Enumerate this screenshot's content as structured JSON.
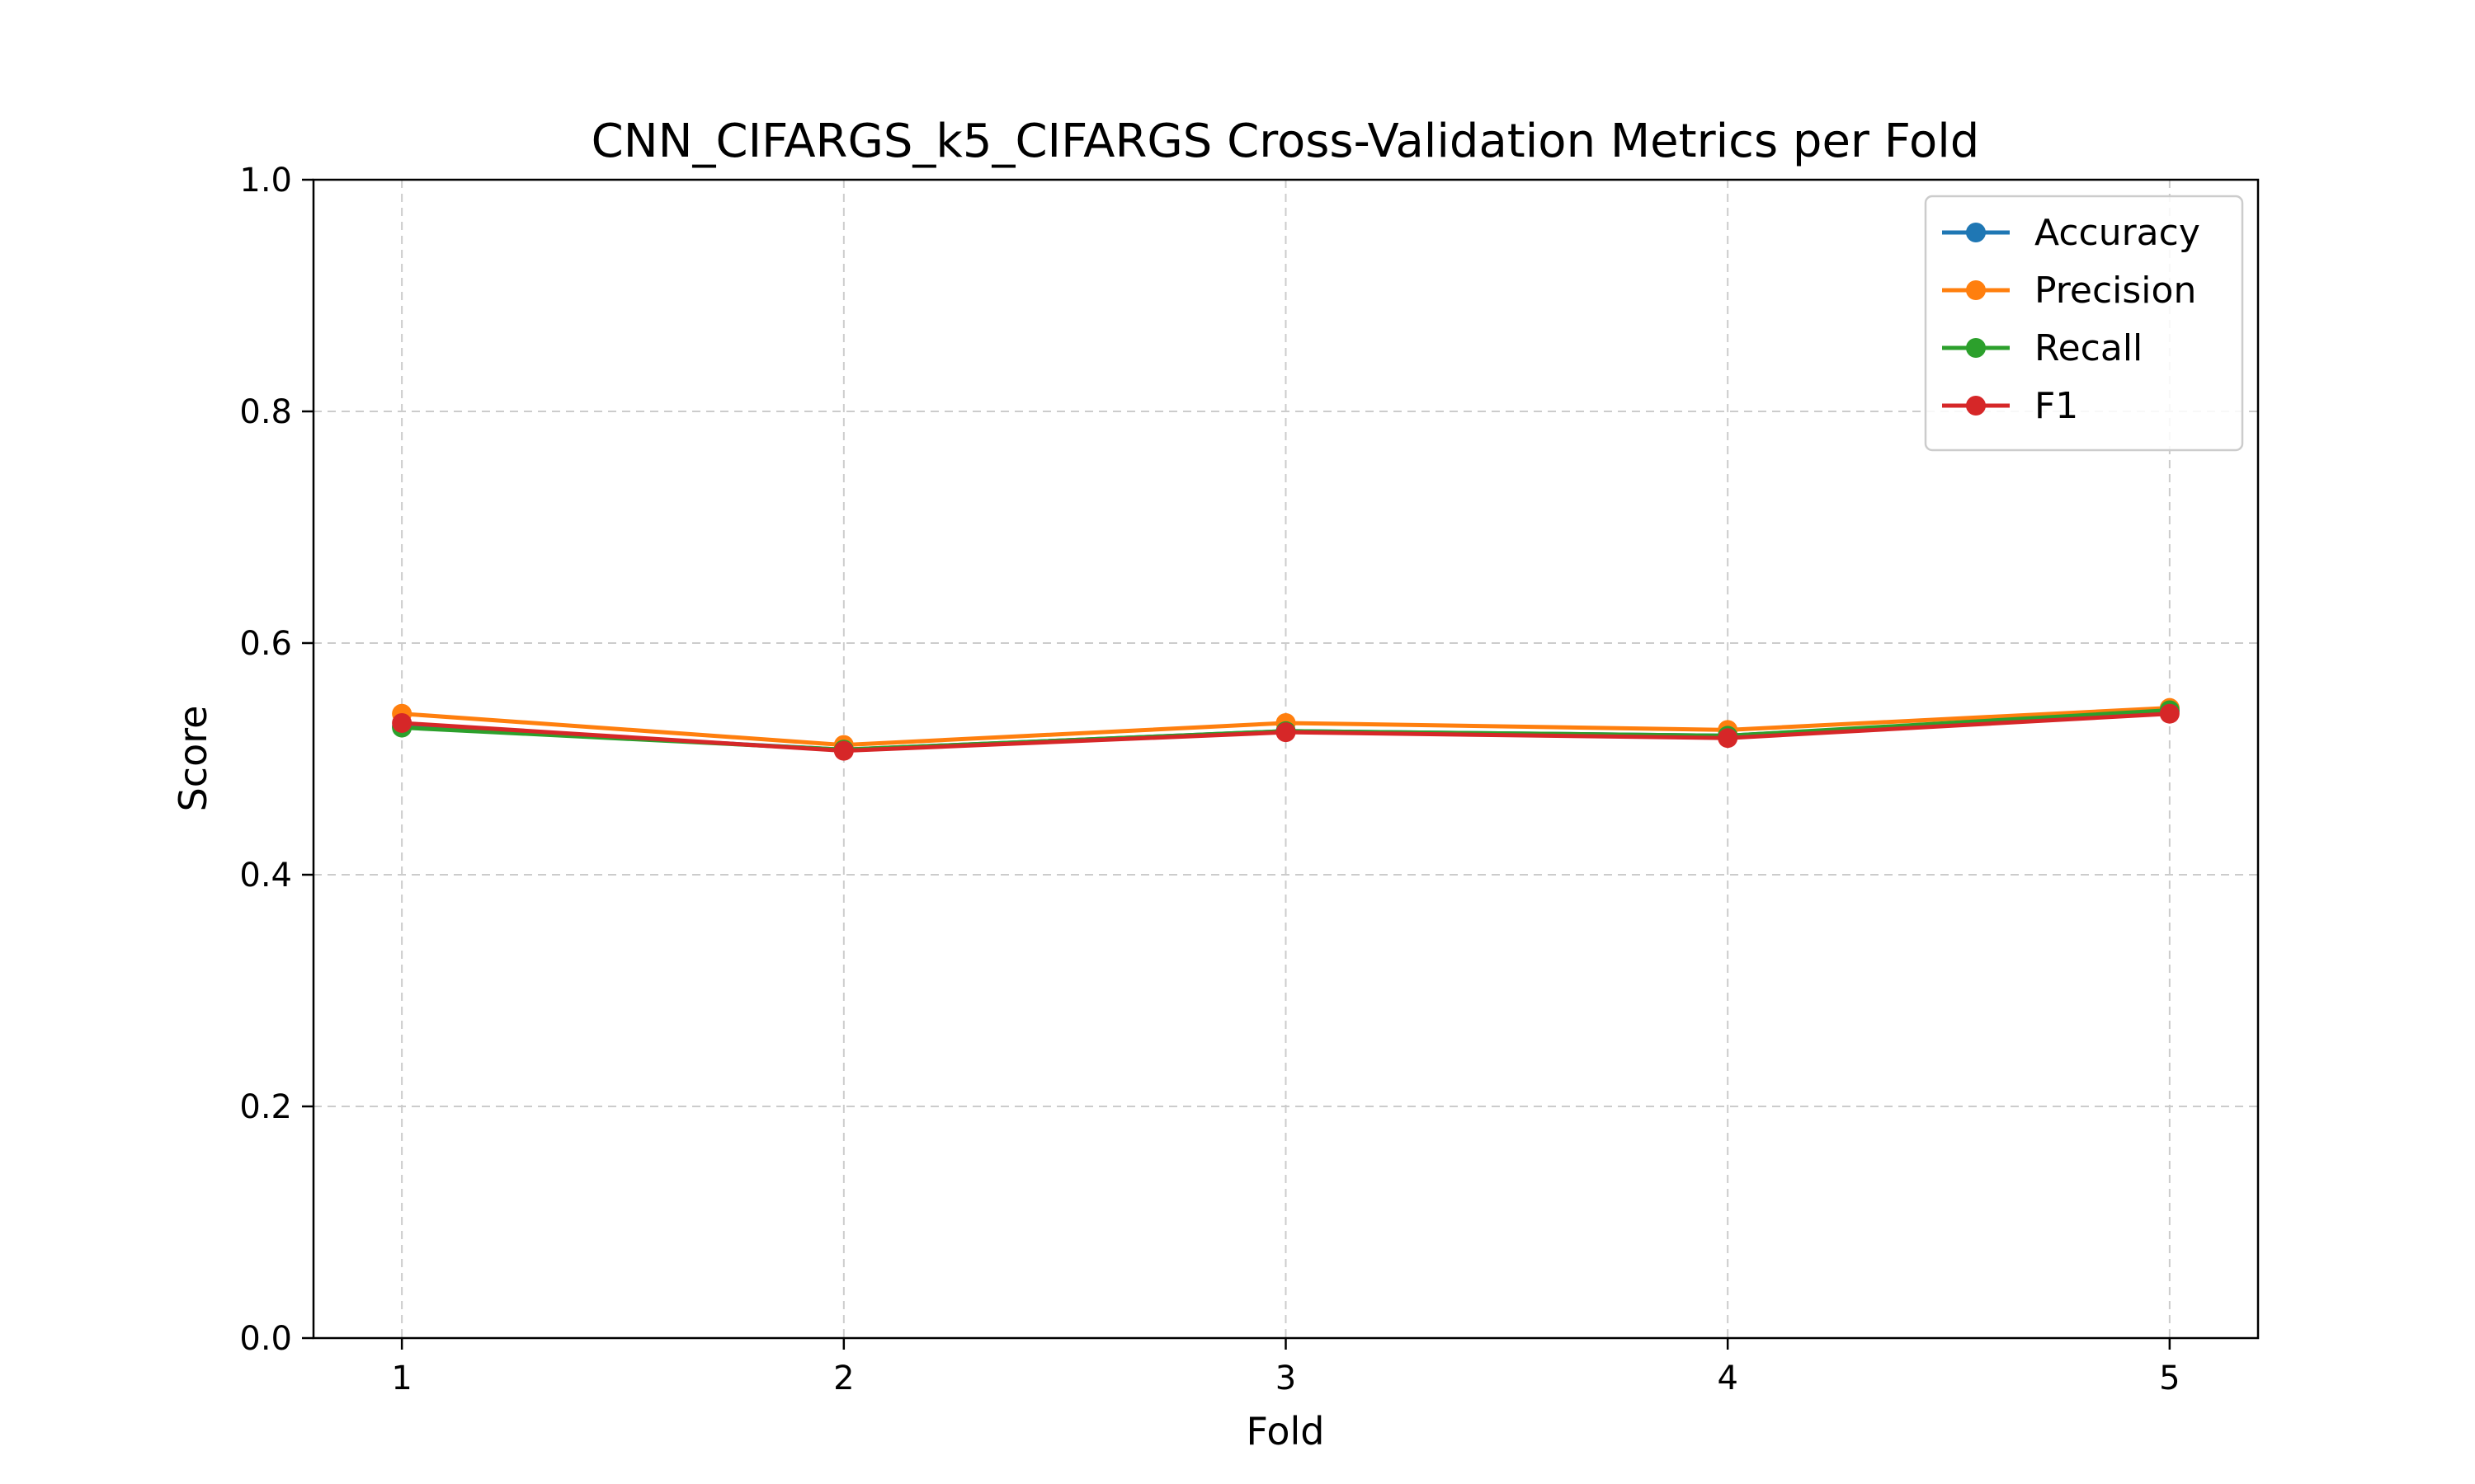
{
  "chart_data": {
    "type": "line",
    "title": "CNN_CIFARGS_k5_CIFARGS Cross-Validation Metrics per Fold",
    "xlabel": "Fold",
    "ylabel": "Score",
    "x": [
      1,
      2,
      3,
      4,
      5
    ],
    "xticks": [
      "1",
      "2",
      "3",
      "4",
      "5"
    ],
    "xlim": [
      0.8,
      5.2
    ],
    "ylim": [
      0.0,
      1.0
    ],
    "yticks": [
      "0.0",
      "0.2",
      "0.4",
      "0.6",
      "0.8",
      "1.0"
    ],
    "grid": true,
    "legend_position": "top-right",
    "series": [
      {
        "name": "Accuracy",
        "color": "#1f77b4",
        "values": [
          0.528,
          0.508,
          0.524,
          0.52,
          0.541
        ]
      },
      {
        "name": "Precision",
        "color": "#ff7f0e",
        "values": [
          0.539,
          0.512,
          0.531,
          0.525,
          0.544
        ]
      },
      {
        "name": "Recall",
        "color": "#2ca02c",
        "values": [
          0.527,
          0.508,
          0.524,
          0.52,
          0.542
        ]
      },
      {
        "name": "F1",
        "color": "#d62728",
        "values": [
          0.531,
          0.507,
          0.523,
          0.518,
          0.539
        ]
      }
    ]
  }
}
